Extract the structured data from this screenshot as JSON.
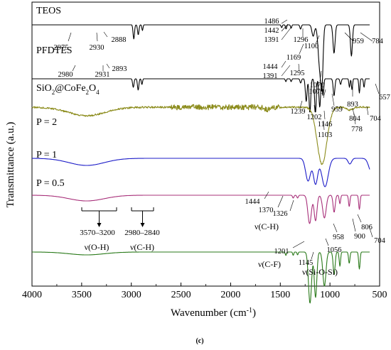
{
  "chart_data": {
    "type": "line",
    "xlabel": "Wavenumber (cm",
    "xlabel_sup": "-1",
    "xlabel_close": ")",
    "ylabel": "Transmittance (a.u.)",
    "xlim": [
      4000,
      500
    ],
    "x_ticks": [
      "4000",
      "3500",
      "3000",
      "2500",
      "2000",
      "1500",
      "1000",
      "500"
    ],
    "caption": "(c)",
    "series": [
      {
        "name": "TEOS",
        "color": "#000000",
        "baseline": 0.08,
        "noise": 0.0,
        "bands": [
          [
            2975,
            0.05,
            10
          ],
          [
            2930,
            0.035,
            10
          ],
          [
            2888,
            0.02,
            8
          ],
          [
            1486,
            0.01,
            8
          ],
          [
            1442,
            0.015,
            8
          ],
          [
            1391,
            0.012,
            8
          ],
          [
            1296,
            0.015,
            10
          ],
          [
            1169,
            0.04,
            18
          ],
          [
            1100,
            0.16,
            25
          ],
          [
            1079,
            0.14,
            15
          ],
          [
            959,
            0.1,
            15
          ],
          [
            784,
            0.11,
            14
          ]
        ]
      },
      {
        "name": "PFDTES",
        "color": "#000000",
        "baseline": 0.27,
        "noise": 0.0,
        "bands": [
          [
            2980,
            0.03,
            10
          ],
          [
            2931,
            0.04,
            10
          ],
          [
            2893,
            0.02,
            8
          ],
          [
            1444,
            0.01,
            8
          ],
          [
            1391,
            0.01,
            8
          ],
          [
            1295,
            0.015,
            10
          ],
          [
            1239,
            0.08,
            12
          ],
          [
            1202,
            0.12,
            12
          ],
          [
            1146,
            0.12,
            12
          ],
          [
            1103,
            0.1,
            12
          ],
          [
            1070,
            0.06,
            10
          ],
          [
            959,
            0.06,
            12
          ],
          [
            893,
            0.02,
            10
          ],
          [
            804,
            0.03,
            8
          ],
          [
            778,
            0.04,
            8
          ],
          [
            704,
            0.05,
            8
          ],
          [
            657,
            0.03,
            8
          ]
        ]
      },
      {
        "name": "SiO2@CoFe2O4",
        "color": "#8b8b1a",
        "baseline": 0.37,
        "noise": 0.012,
        "bands": [
          [
            3450,
            0.03,
            260
          ],
          [
            1630,
            0.01,
            40
          ],
          [
            1080,
            0.2,
            70
          ],
          [
            800,
            0.01,
            40
          ]
        ]
      },
      {
        "name": "P = 2",
        "color": "#1c1cc8",
        "baseline": 0.55,
        "noise": 0.0,
        "bands": [
          [
            3450,
            0.025,
            250
          ],
          [
            1220,
            0.08,
            35
          ],
          [
            1145,
            0.09,
            30
          ],
          [
            1050,
            0.1,
            45
          ],
          [
            800,
            0.02,
            25
          ],
          [
            580,
            0.05,
            40
          ]
        ]
      },
      {
        "name": "P = 1",
        "color": "#a8307a",
        "baseline": 0.68,
        "noise": 0.0,
        "bands": [
          [
            3450,
            0.02,
            250
          ],
          [
            1370,
            0.01,
            10
          ],
          [
            1326,
            0.01,
            10
          ],
          [
            1205,
            0.1,
            25
          ],
          [
            1145,
            0.09,
            20
          ],
          [
            1056,
            0.08,
            25
          ],
          [
            958,
            0.06,
            15
          ],
          [
            900,
            0.03,
            10
          ],
          [
            806,
            0.04,
            10
          ],
          [
            704,
            0.05,
            10
          ]
        ]
      },
      {
        "name": "P = 0.5",
        "color": "#2a7a1a",
        "baseline": 0.88,
        "noise": 0.0,
        "bands": [
          [
            3450,
            0.01,
            250
          ],
          [
            1444,
            0.012,
            8
          ],
          [
            1370,
            0.012,
            8
          ],
          [
            1326,
            0.01,
            8
          ],
          [
            1201,
            0.18,
            22
          ],
          [
            1145,
            0.16,
            18
          ],
          [
            1056,
            0.12,
            22
          ],
          [
            958,
            0.08,
            14
          ],
          [
            900,
            0.05,
            10
          ],
          [
            806,
            0.04,
            10
          ],
          [
            704,
            0.06,
            10
          ]
        ]
      }
    ],
    "series_labels": [
      {
        "text": "TEOS",
        "series": 0
      },
      {
        "text": "PFDTES",
        "series": 1
      },
      {
        "text": "SiO",
        "sub1": "2",
        "mid": "@CoFe",
        "sub2": "2",
        "mid2": "O",
        "sub3": "4",
        "series": 2
      },
      {
        "text": "P = 2",
        "series": 3
      },
      {
        "text": "P = 1",
        "series": 4
      },
      {
        "text": "P = 0.5",
        "series": 5
      }
    ],
    "peak_labels": [
      {
        "text": "2975"
      },
      {
        "text": "2930"
      },
      {
        "text": "2888"
      },
      {
        "text": "1486"
      },
      {
        "text": "1442"
      },
      {
        "text": "1391"
      },
      {
        "text": "1296"
      },
      {
        "text": "1169"
      },
      {
        "text": "1100"
      },
      {
        "text": "959"
      },
      {
        "text": "784"
      },
      {
        "text": "2980"
      },
      {
        "text": "2931"
      },
      {
        "text": "2893"
      },
      {
        "text": "1444"
      },
      {
        "text": "1391"
      },
      {
        "text": "1295"
      },
      {
        "text": "1070"
      },
      {
        "text": "1079"
      },
      {
        "text": "893"
      },
      {
        "text": "804"
      },
      {
        "text": "778"
      },
      {
        "text": "704"
      },
      {
        "text": "657"
      },
      {
        "text": "959"
      },
      {
        "text": "1239"
      },
      {
        "text": "1202"
      },
      {
        "text": "1146"
      },
      {
        "text": "1103"
      },
      {
        "text": "1444"
      },
      {
        "text": "1370"
      },
      {
        "text": "1326"
      },
      {
        "text": "1201"
      },
      {
        "text": "1145"
      },
      {
        "text": "1056"
      },
      {
        "text": "958"
      },
      {
        "text": "900"
      },
      {
        "text": "806"
      },
      {
        "text": "704"
      }
    ],
    "annotations": [
      {
        "text": "3570–3200"
      },
      {
        "text": "ν(O-H)"
      },
      {
        "text": "2980–2840"
      },
      {
        "text": "ν(C-H)"
      },
      {
        "text": "ν(C-H)"
      },
      {
        "text": "ν(C-F)"
      },
      {
        "text": "ν(Si-O-Si)"
      }
    ]
  }
}
